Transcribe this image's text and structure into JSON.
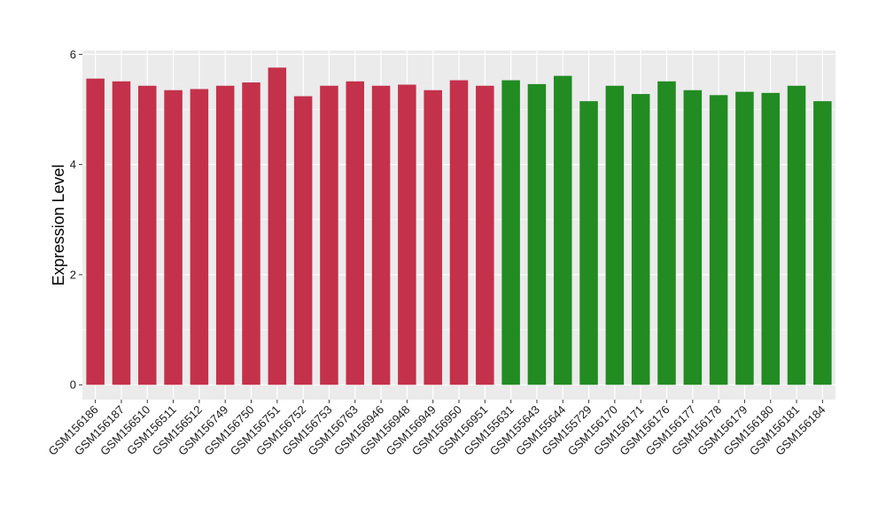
{
  "chart_data": {
    "type": "bar",
    "ylabel": "Expression Level",
    "xlabel": "",
    "ylim": [
      -0.27,
      6.07
    ],
    "yticks": [
      0,
      2,
      4,
      6
    ],
    "grid": true,
    "panel_background": "#ebebeb",
    "grid_color": "#ffffff",
    "categories": [
      "GSM156186",
      "GSM156187",
      "GSM156510",
      "GSM156511",
      "GSM156512",
      "GSM156749",
      "GSM156750",
      "GSM156751",
      "GSM156752",
      "GSM156753",
      "GSM156763",
      "GSM156946",
      "GSM156948",
      "GSM156949",
      "GSM156950",
      "GSM156951",
      "GSM155631",
      "GSM155643",
      "GSM155644",
      "GSM155729",
      "GSM156170",
      "GSM156171",
      "GSM156176",
      "GSM156177",
      "GSM156178",
      "GSM156179",
      "GSM156180",
      "GSM156181",
      "GSM156184"
    ],
    "values": [
      5.56,
      5.51,
      5.43,
      5.35,
      5.37,
      5.43,
      5.49,
      5.76,
      5.24,
      5.43,
      5.51,
      5.43,
      5.45,
      5.35,
      5.53,
      5.43,
      5.53,
      5.46,
      5.61,
      5.15,
      5.43,
      5.28,
      5.51,
      5.35,
      5.26,
      5.32,
      5.3,
      5.43,
      5.15
    ],
    "colors": [
      "#c4314b",
      "#c4314b",
      "#c4314b",
      "#c4314b",
      "#c4314b",
      "#c4314b",
      "#c4314b",
      "#c4314b",
      "#c4314b",
      "#c4314b",
      "#c4314b",
      "#c4314b",
      "#c4314b",
      "#c4314b",
      "#c4314b",
      "#c4314b",
      "#228b22",
      "#228b22",
      "#228b22",
      "#228b22",
      "#228b22",
      "#228b22",
      "#228b22",
      "#228b22",
      "#228b22",
      "#228b22",
      "#228b22",
      "#228b22",
      "#228b22"
    ]
  }
}
